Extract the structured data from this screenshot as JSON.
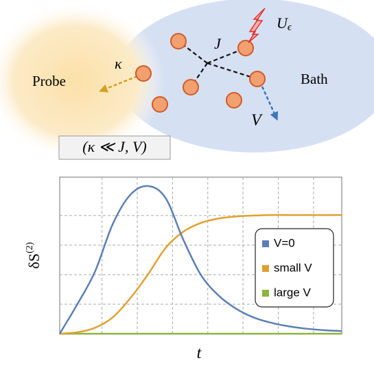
{
  "diagram": {
    "coupling": "J",
    "noise": "U",
    "noise_sub": "ϵ",
    "rate": "κ",
    "probe": "Probe",
    "bath": "Bath",
    "dissipation": "V",
    "condition": "(κ ≪ J, V)"
  },
  "chart_data": {
    "type": "line",
    "x_label": "t",
    "y_label": "δS",
    "y_label_sup": "(2)",
    "x": [
      0,
      0.5,
      1,
      1.5,
      2,
      2.5,
      3,
      3.5,
      4,
      4.5,
      5,
      5.5,
      6,
      6.5,
      7,
      7.5,
      8
    ],
    "series": [
      {
        "name": "V=0",
        "color": "#5b7fb5",
        "values": [
          0,
          1.0,
          2.1,
          3.7,
          4.7,
          5.0,
          4.6,
          3.2,
          2.0,
          1.3,
          0.85,
          0.55,
          0.37,
          0.25,
          0.17,
          0.12,
          0.09
        ]
      },
      {
        "name": "small V",
        "color": "#e0a030",
        "values": [
          0,
          0.05,
          0.2,
          0.55,
          1.2,
          2.0,
          2.9,
          3.45,
          3.75,
          3.9,
          3.97,
          4.0,
          4.02,
          4.02,
          4.02,
          4.02,
          4.02
        ]
      },
      {
        "name": "large V",
        "color": "#8db43c",
        "values": [
          0,
          0,
          0,
          0,
          0,
          0,
          0,
          0,
          0,
          0,
          0,
          0,
          0,
          0,
          0,
          0,
          0
        ]
      }
    ],
    "xlim": [
      0,
      8
    ],
    "ylim": [
      0,
      5.3
    ],
    "xticks": [
      1.2,
      2.2,
      3.2,
      4.2,
      5.2,
      6.2,
      7.2
    ],
    "yticks": [
      1,
      2,
      3,
      4
    ],
    "grid": true,
    "legend": "right"
  }
}
